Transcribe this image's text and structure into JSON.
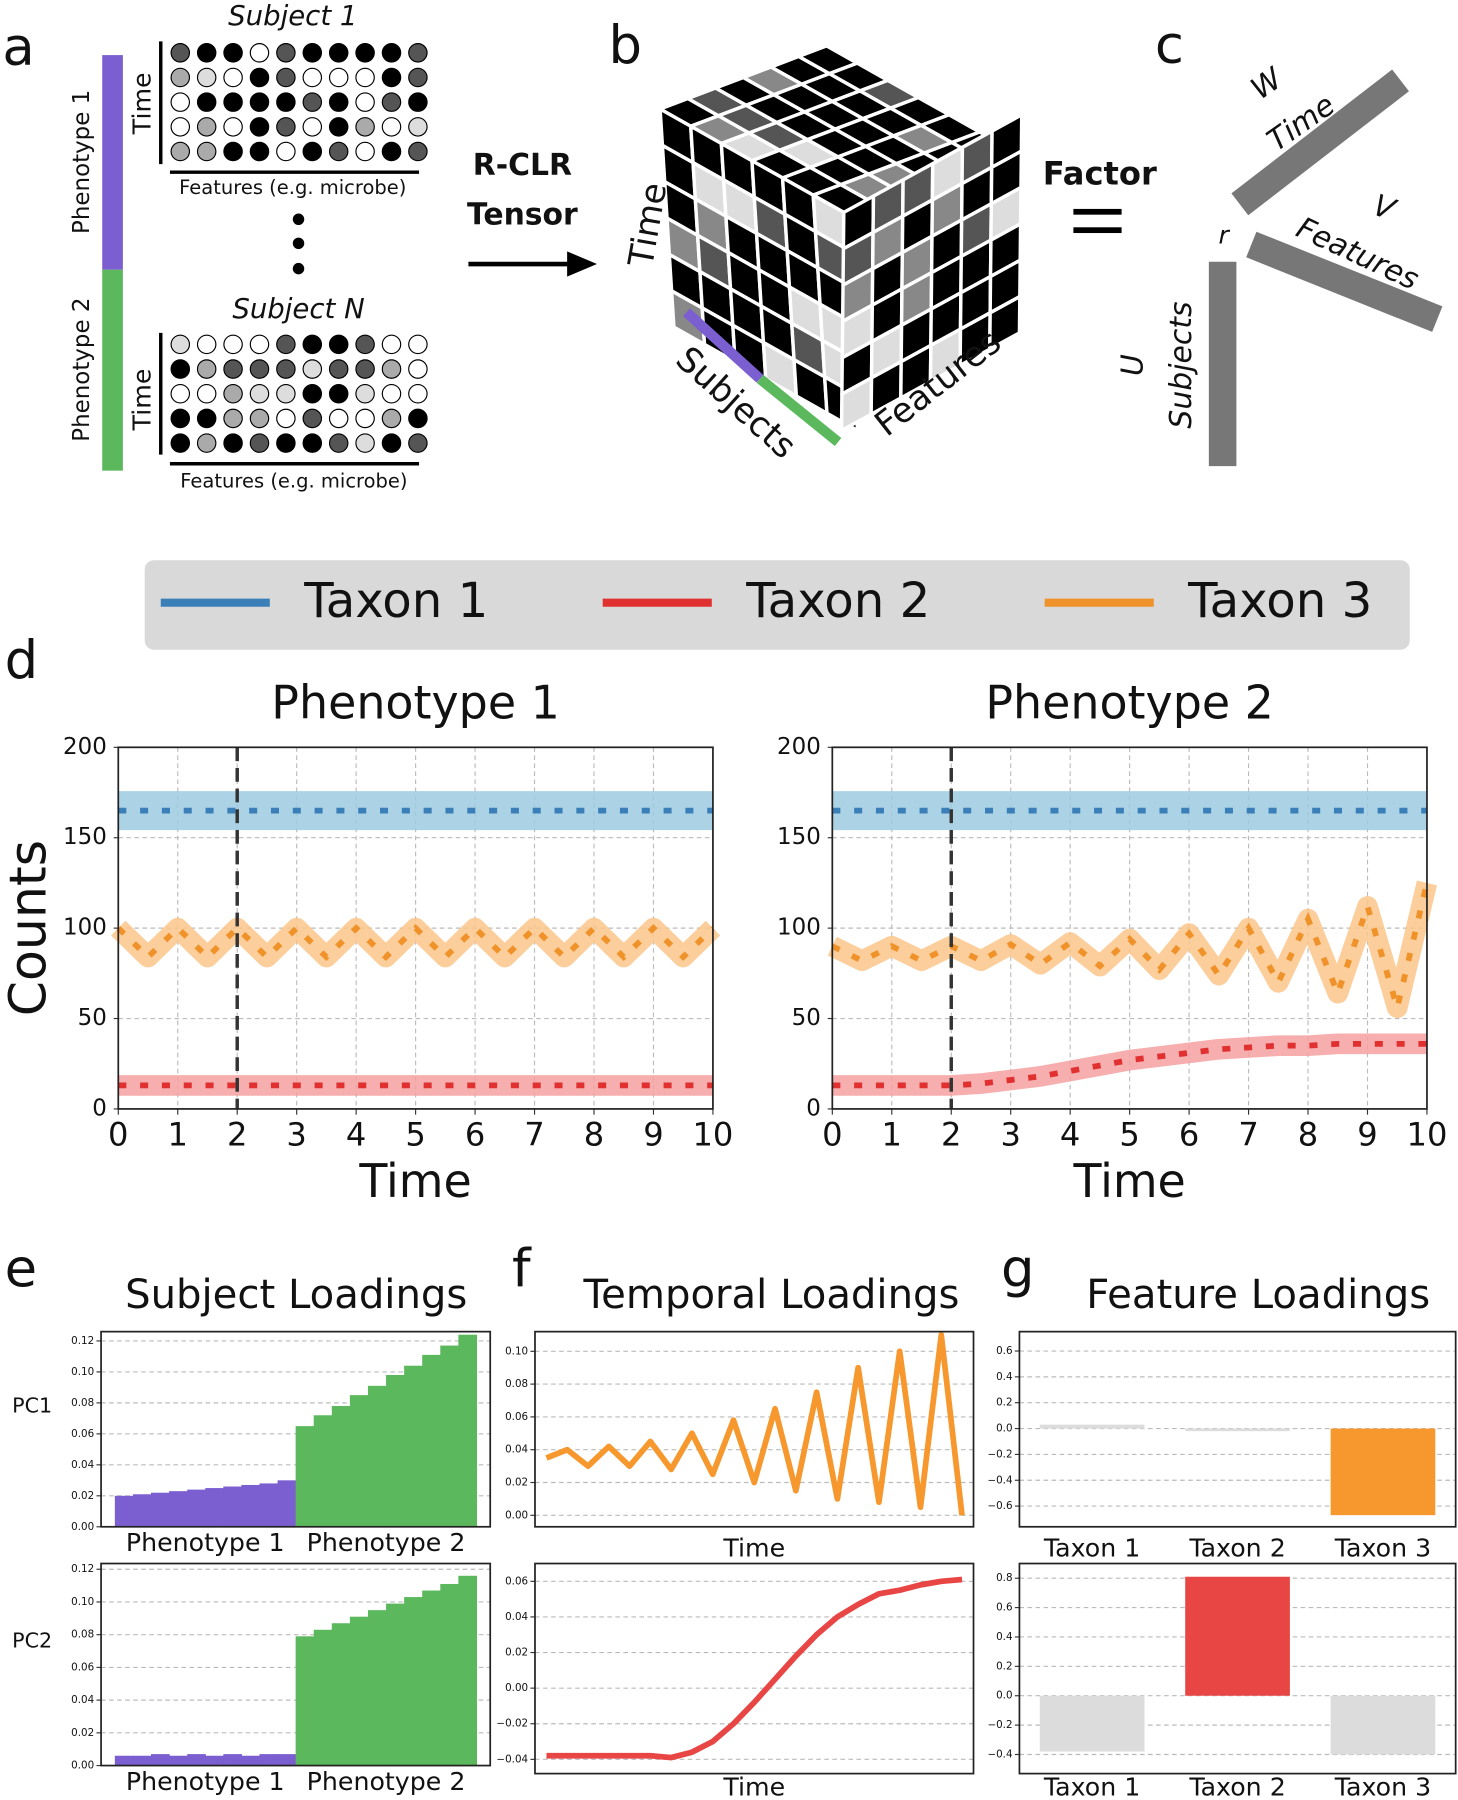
{
  "panel_labels": [
    "a",
    "b",
    "c",
    "d",
    "e",
    "f",
    "g"
  ],
  "diagram": {
    "panel_a": {
      "subject_1": "Subject 1",
      "subject_n": "Subject N",
      "time_label": "Time",
      "features_label": "Features (e.g. microbe)",
      "phenotype_1": "Phenotype 1",
      "phenotype_2": "Phenotype 2"
    },
    "arrow": [
      "R-CLR",
      "Tensor"
    ],
    "panel_b": {
      "time": "Time",
      "subjects": "Subjects",
      "features": "Features"
    },
    "panel_c": {
      "factor": "Factor",
      "w": "W",
      "w_axis": "Time",
      "v": "V",
      "v_axis": "Features",
      "r": "r",
      "u": "U",
      "u_axis": "Subjects"
    }
  },
  "chart_data": [
    {
      "type": "line",
      "title": "Phenotype 1",
      "xlabel": "Time",
      "ylabel": "Counts",
      "x": [
        0,
        0.5,
        1,
        1.5,
        2,
        2.5,
        3,
        3.5,
        4,
        4.5,
        5,
        5.5,
        6,
        6.5,
        7,
        7.5,
        8,
        8.5,
        9,
        9.5,
        10
      ],
      "series": [
        {
          "name": "Taxon 1",
          "color": "#3a7fb8",
          "band_color": "#9ecae1",
          "values": [
            165,
            165,
            165,
            165,
            165,
            165,
            165,
            165,
            165,
            165,
            165,
            165,
            165,
            165,
            165,
            165,
            165,
            165,
            165,
            165,
            165
          ]
        },
        {
          "name": "Taxon 2",
          "color": "#e03030",
          "band_color": "#f4a0a0",
          "values": [
            13,
            13,
            13,
            13,
            13,
            13,
            13,
            13,
            13,
            13,
            13,
            13,
            13,
            13,
            13,
            13,
            13,
            13,
            13,
            13,
            13
          ]
        },
        {
          "name": "Taxon 3",
          "color": "#f0922a",
          "band_color": "#fbc68a",
          "values": [
            100,
            84,
            100,
            84,
            100,
            84,
            100,
            84,
            100,
            84,
            100,
            84,
            100,
            84,
            100,
            84,
            100,
            84,
            100,
            84,
            100
          ]
        }
      ],
      "xlim": [
        0,
        10
      ],
      "xticks": [
        0,
        1,
        2,
        3,
        4,
        5,
        6,
        7,
        8,
        9,
        10
      ],
      "ylim": [
        0,
        200
      ],
      "yticks": [
        0,
        50,
        100,
        150,
        200
      ],
      "grid": true,
      "vline": 2
    },
    {
      "type": "line",
      "title": "Phenotype 2",
      "xlabel": "Time",
      "x": [
        0,
        0.5,
        1,
        1.5,
        2,
        2.5,
        3,
        3.5,
        4,
        4.5,
        5,
        5.5,
        6,
        6.5,
        7,
        7.5,
        8,
        8.5,
        9,
        9.5,
        10
      ],
      "series": [
        {
          "name": "Taxon 1",
          "color": "#3a7fb8",
          "band_color": "#9ecae1",
          "values": [
            165,
            165,
            165,
            165,
            165,
            165,
            165,
            165,
            165,
            165,
            165,
            165,
            165,
            165,
            165,
            165,
            165,
            165,
            165,
            165,
            165
          ]
        },
        {
          "name": "Taxon 2",
          "color": "#e03030",
          "band_color": "#f4a0a0",
          "values": [
            13,
            13,
            13,
            13,
            13,
            14,
            16,
            18,
            21,
            24,
            27,
            29,
            31,
            33,
            34,
            35,
            35,
            36,
            36,
            36,
            36
          ]
        },
        {
          "name": "Taxon 3",
          "color": "#f0922a",
          "band_color": "#fbc68a",
          "values": [
            90,
            82,
            90,
            82,
            90,
            82,
            91,
            80,
            92,
            79,
            94,
            77,
            97,
            74,
            100,
            70,
            105,
            64,
            112,
            56,
            125
          ]
        }
      ],
      "xlim": [
        0,
        10
      ],
      "xticks": [
        0,
        1,
        2,
        3,
        4,
        5,
        6,
        7,
        8,
        9,
        10
      ],
      "ylim": [
        0,
        200
      ],
      "yticks": [
        0,
        50,
        100,
        150,
        200
      ],
      "grid": true,
      "vline": 2
    },
    {
      "type": "grouped_bar",
      "title": "Subject Loadings",
      "ylabel": "PC1",
      "groups": [
        {
          "name": "Phenotype 1",
          "color": "#7b5fd0",
          "values": [
            0.02,
            0.021,
            0.022,
            0.023,
            0.024,
            0.025,
            0.026,
            0.027,
            0.028,
            0.03
          ]
        },
        {
          "name": "Phenotype 2",
          "color": "#5cb85c",
          "values": [
            0.065,
            0.072,
            0.078,
            0.085,
            0.091,
            0.098,
            0.104,
            0.111,
            0.117,
            0.124
          ]
        }
      ],
      "ylim": [
        0,
        0.126
      ],
      "yticks": [
        {
          "value": 0,
          "label": "0.00"
        },
        {
          "value": 0.02,
          "label": "0.02"
        },
        {
          "value": 0.04,
          "label": "0.04"
        },
        {
          "value": 0.06,
          "label": "0.06"
        },
        {
          "value": 0.08,
          "label": "0.08"
        },
        {
          "value": 0.1,
          "label": "0.10"
        },
        {
          "value": 0.12,
          "label": "0.12"
        }
      ],
      "grid": true
    },
    {
      "type": "grouped_bar",
      "ylabel": "PC2",
      "groups": [
        {
          "name": "Phenotype 1",
          "color": "#7b5fd0",
          "values": [
            0.006,
            0.006,
            0.007,
            0.006,
            0.007,
            0.006,
            0.007,
            0.006,
            0.007,
            0.007
          ]
        },
        {
          "name": "Phenotype 2",
          "color": "#5cb85c",
          "values": [
            0.079,
            0.083,
            0.087,
            0.091,
            0.095,
            0.099,
            0.103,
            0.107,
            0.111,
            0.116
          ]
        }
      ],
      "ylim": [
        0,
        0.1235
      ],
      "yticks": [
        {
          "value": 0,
          "label": "0.00"
        },
        {
          "value": 0.02,
          "label": "0.02"
        },
        {
          "value": 0.04,
          "label": "0.04"
        },
        {
          "value": 0.06,
          "label": "0.06"
        },
        {
          "value": 0.08,
          "label": "0.08"
        },
        {
          "value": 0.1,
          "label": "0.10"
        },
        {
          "value": 0.12,
          "label": "0.12"
        }
      ],
      "grid": true
    },
    {
      "type": "index_line",
      "title": "Temporal Loadings",
      "xlabel": "Time",
      "color": "#f7982f",
      "values": [
        0.035,
        0.04,
        0.03,
        0.042,
        0.03,
        0.045,
        0.028,
        0.05,
        0.025,
        0.058,
        0.02,
        0.065,
        0.015,
        0.075,
        0.01,
        0.09,
        0.008,
        0.1,
        0.005,
        0.11,
        0.0
      ],
      "ylim": [
        -0.007,
        0.112
      ],
      "yticks": [
        {
          "value": 0,
          "label": "0.00"
        },
        {
          "value": 0.02,
          "label": "0.02"
        },
        {
          "value": 0.04,
          "label": "0.04"
        },
        {
          "value": 0.06,
          "label": "0.06"
        },
        {
          "value": 0.08,
          "label": "0.08"
        },
        {
          "value": 0.1,
          "label": "0.10"
        }
      ],
      "grid": true
    },
    {
      "type": "index_line",
      "xlabel": "Time",
      "color": "#e84545",
      "values": [
        -0.038,
        -0.038,
        -0.038,
        -0.038,
        -0.038,
        -0.038,
        -0.039,
        -0.036,
        -0.03,
        -0.02,
        -0.008,
        0.005,
        0.018,
        0.03,
        0.04,
        0.047,
        0.053,
        0.055,
        0.058,
        0.06,
        0.061
      ],
      "ylim": [
        -0.048,
        0.07
      ],
      "yticks": [
        {
          "value": -0.04,
          "label": "−0.04"
        },
        {
          "value": -0.02,
          "label": "−0.02"
        },
        {
          "value": 0,
          "label": "0.00"
        },
        {
          "value": 0.02,
          "label": "0.02"
        },
        {
          "value": 0.04,
          "label": "0.04"
        },
        {
          "value": 0.06,
          "label": "0.06"
        }
      ],
      "grid": true
    },
    {
      "type": "bar",
      "title": "Feature Loadings",
      "categories": [
        "Taxon 1",
        "Taxon 2",
        "Taxon 3"
      ],
      "values": [
        0.03,
        -0.02,
        -0.67
      ],
      "colors": [
        "#dcdcdc",
        "#dcdcdc",
        "#f7982f"
      ],
      "ylim": [
        -0.76,
        0.75
      ],
      "yticks": [
        {
          "value": -0.6,
          "label": "−0.6"
        },
        {
          "value": -0.4,
          "label": "−0.4"
        },
        {
          "value": -0.2,
          "label": "−0.2"
        },
        {
          "value": 0,
          "label": "0.0"
        },
        {
          "value": 0.2,
          "label": "0.2"
        },
        {
          "value": 0.4,
          "label": "0.4"
        },
        {
          "value": 0.6,
          "label": "0.6"
        }
      ],
      "grid": true
    },
    {
      "type": "bar",
      "categories": [
        "Taxon 1",
        "Taxon 2",
        "Taxon 3"
      ],
      "values": [
        -0.38,
        0.81,
        -0.4
      ],
      "colors": [
        "#dcdcdc",
        "#e84545",
        "#dcdcdc"
      ],
      "ylim": [
        -0.53,
        0.9
      ],
      "yticks": [
        {
          "value": -0.4,
          "label": "−0.4"
        },
        {
          "value": -0.2,
          "label": "−0.2"
        },
        {
          "value": 0,
          "label": "0.0"
        },
        {
          "value": 0.2,
          "label": "0.2"
        },
        {
          "value": 0.4,
          "label": "0.4"
        },
        {
          "value": 0.6,
          "label": "0.6"
        },
        {
          "value": 0.8,
          "label": "0.8"
        }
      ],
      "grid": true
    }
  ]
}
